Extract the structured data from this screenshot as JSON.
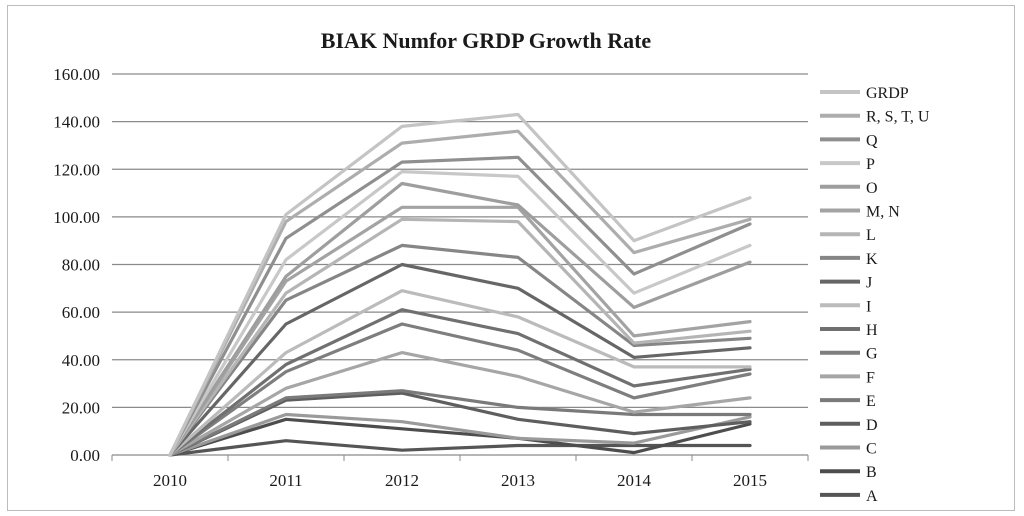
{
  "chart_data": {
    "type": "line",
    "title": "BIAK Numfor GRDP Growth Rate",
    "xlabel": "",
    "ylabel": "",
    "x": [
      "2010",
      "2011",
      "2012",
      "2013",
      "2014",
      "2015"
    ],
    "ylim": [
      0,
      160
    ],
    "yticks": [
      "0.00",
      "20.00",
      "40.00",
      "60.00",
      "80.00",
      "100.00",
      "120.00",
      "140.00",
      "160.00"
    ],
    "grid": "horizontal",
    "legend_position": "right",
    "series": [
      {
        "name": "GRDP",
        "color": "#c4c4c4",
        "values": [
          0,
          101,
          138,
          143,
          90,
          108
        ]
      },
      {
        "name": "R, S, T, U",
        "color": "#adadad",
        "values": [
          0,
          98,
          131,
          136,
          85,
          99
        ]
      },
      {
        "name": "Q",
        "color": "#8f8f8f",
        "values": [
          0,
          91,
          123,
          125,
          76,
          97
        ]
      },
      {
        "name": "P",
        "color": "#c8c8c8",
        "values": [
          0,
          82,
          119,
          117,
          68,
          88
        ]
      },
      {
        "name": "O",
        "color": "#9e9e9e",
        "values": [
          0,
          75,
          114,
          105,
          62,
          81
        ]
      },
      {
        "name": "M, N",
        "color": "#a3a3a3",
        "values": [
          0,
          73,
          104,
          104,
          50,
          56
        ]
      },
      {
        "name": "L",
        "color": "#b5b5b5",
        "values": [
          0,
          68,
          99,
          98,
          47,
          52
        ]
      },
      {
        "name": "K",
        "color": "#868686",
        "values": [
          0,
          65,
          88,
          83,
          46,
          49
        ]
      },
      {
        "name": "J",
        "color": "#666666",
        "values": [
          0,
          55,
          80,
          70,
          41,
          45
        ]
      },
      {
        "name": "I",
        "color": "#bbbbbb",
        "values": [
          0,
          43,
          69,
          58,
          37,
          37
        ]
      },
      {
        "name": "H",
        "color": "#707070",
        "values": [
          0,
          38,
          61,
          51,
          29,
          36
        ]
      },
      {
        "name": "G",
        "color": "#7e7e7e",
        "values": [
          0,
          35,
          55,
          44,
          24,
          34
        ]
      },
      {
        "name": "F",
        "color": "#a6a6a6",
        "values": [
          0,
          28,
          43,
          33,
          18,
          24
        ]
      },
      {
        "name": "E",
        "color": "#7a7a7a",
        "values": [
          0,
          24,
          27,
          20,
          17,
          17
        ]
      },
      {
        "name": "D",
        "color": "#5e5e5e",
        "values": [
          0,
          23,
          26,
          15,
          9,
          14
        ]
      },
      {
        "name": "C",
        "color": "#9a9a9a",
        "values": [
          0,
          17,
          14,
          7,
          5,
          16
        ]
      },
      {
        "name": "B",
        "color": "#4d4d4d",
        "values": [
          0,
          15,
          11,
          7,
          1,
          13
        ]
      },
      {
        "name": "A",
        "color": "#555555",
        "values": [
          0,
          6,
          2,
          4,
          4,
          4
        ]
      }
    ]
  }
}
